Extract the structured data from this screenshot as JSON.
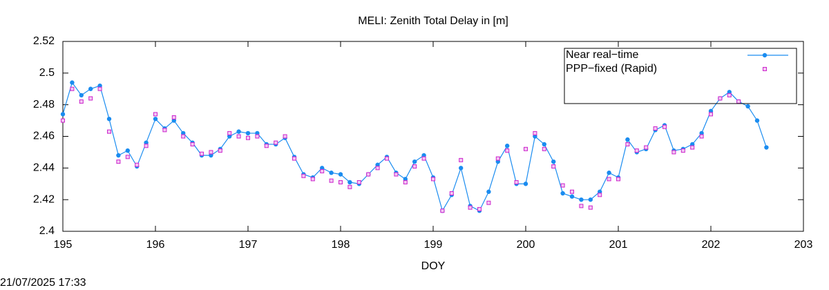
{
  "chart_data": {
    "type": "scatter",
    "title": "MELI: Zenith Total Delay in [m]",
    "xlabel": "DOY",
    "timestamp": "21/07/2025 17:33",
    "xlim": [
      195,
      203
    ],
    "xticks": [
      195,
      196,
      197,
      198,
      199,
      200,
      201,
      202,
      203
    ],
    "ylim": [
      2.4,
      2.52
    ],
    "yticks": [
      2.4,
      2.42,
      2.44,
      2.46,
      2.48,
      2.5,
      2.52
    ],
    "legend": "upper right",
    "x": [
      195.0,
      195.1,
      195.2,
      195.3,
      195.4,
      195.5,
      195.6,
      195.7,
      195.8,
      195.9,
      196.0,
      196.1,
      196.2,
      196.3,
      196.4,
      196.5,
      196.6,
      196.7,
      196.8,
      196.9,
      197.0,
      197.1,
      197.2,
      197.3,
      197.4,
      197.5,
      197.6,
      197.7,
      197.8,
      197.9,
      198.0,
      198.1,
      198.2,
      198.3,
      198.4,
      198.5,
      198.6,
      198.7,
      198.8,
      198.9,
      199.0,
      199.1,
      199.2,
      199.3,
      199.4,
      199.5,
      199.6,
      199.7,
      199.8,
      199.9,
      200.0,
      200.1,
      200.2,
      200.3,
      200.4,
      200.5,
      200.6,
      200.7,
      200.8,
      200.9,
      201.0,
      201.1,
      201.2,
      201.3,
      201.4,
      201.5,
      201.6,
      201.7,
      201.8,
      201.9,
      202.0,
      202.1,
      202.2,
      202.3,
      202.4,
      202.5,
      202.6
    ],
    "series": [
      {
        "name": "Near real−time",
        "color": "#1a8cf0",
        "lines": true,
        "values": [
          2.474,
          2.494,
          2.486,
          2.49,
          2.492,
          2.471,
          2.448,
          2.451,
          2.441,
          2.456,
          2.471,
          2.465,
          2.47,
          2.462,
          2.456,
          2.448,
          2.448,
          2.452,
          2.46,
          2.463,
          2.462,
          2.462,
          2.455,
          2.455,
          2.459,
          2.447,
          2.436,
          2.434,
          2.44,
          2.437,
          2.436,
          2.431,
          2.43,
          2.436,
          2.442,
          2.447,
          2.437,
          2.433,
          2.444,
          2.448,
          2.434,
          2.413,
          2.423,
          2.44,
          2.416,
          2.413,
          2.425,
          2.444,
          2.454,
          2.43,
          2.43,
          2.46,
          2.455,
          2.444,
          2.424,
          2.422,
          2.42,
          2.42,
          2.425,
          2.437,
          2.434,
          2.458,
          2.45,
          2.452,
          2.464,
          2.467,
          2.451,
          2.452,
          2.455,
          2.462,
          2.476,
          2.484,
          2.488,
          2.482,
          2.479,
          2.47,
          2.453
        ]
      },
      {
        "name": "PPP−fixed (Rapid)",
        "color": "#cc22cc",
        "lines": false,
        "values": [
          2.47,
          2.49,
          2.482,
          2.484,
          2.49,
          2.463,
          2.444,
          2.447,
          2.442,
          2.454,
          2.474,
          2.464,
          2.472,
          2.46,
          2.455,
          2.449,
          2.45,
          2.451,
          2.462,
          2.46,
          2.459,
          2.46,
          2.454,
          2.456,
          2.46,
          2.446,
          2.435,
          2.433,
          2.438,
          2.432,
          2.431,
          2.428,
          2.431,
          2.436,
          2.44,
          2.446,
          2.436,
          2.431,
          2.441,
          2.446,
          2.433,
          2.413,
          2.424,
          2.445,
          2.415,
          2.414,
          2.418,
          2.446,
          2.451,
          2.431,
          2.452,
          2.462,
          2.452,
          2.441,
          2.429,
          2.425,
          2.416,
          2.415,
          2.423,
          2.433,
          2.433,
          2.455,
          2.451,
          2.453,
          2.465,
          2.466,
          2.45,
          2.451,
          2.453,
          2.46,
          2.474,
          2.484,
          2.486,
          2.482,
          null,
          null,
          null
        ]
      }
    ]
  }
}
